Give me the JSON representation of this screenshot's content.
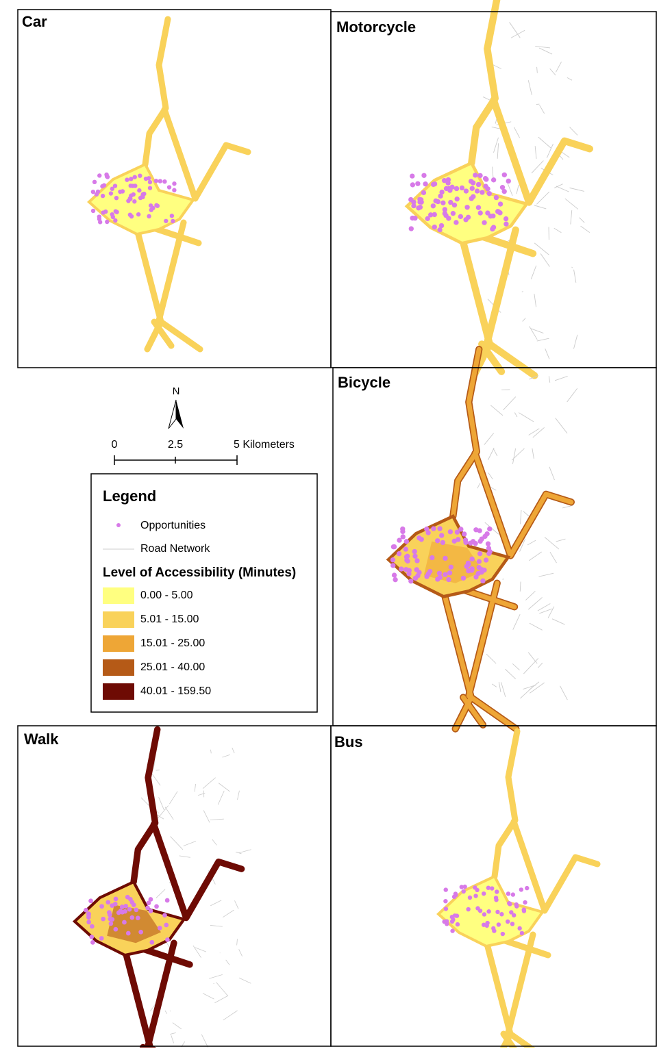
{
  "panels": [
    {
      "title": "Car"
    },
    {
      "title": "Motorcycle"
    },
    {
      "title": "Bicycle"
    },
    {
      "title": "Walk"
    },
    {
      "title": "Bus"
    }
  ],
  "north": "N",
  "scale_bar": {
    "labels": [
      "0",
      "2.5",
      "5 Kilometers"
    ]
  },
  "legend": {
    "title": "Legend",
    "items": [
      {
        "label": "Opportunities",
        "color": "#d77ae8"
      },
      {
        "label": "Road Network",
        "color": "#cccccc"
      }
    ],
    "accessibility_title": "Level of Accessibility (Minutes)",
    "classes": [
      {
        "label": "0.00  -  5.00",
        "color": "#ffff80"
      },
      {
        "label": "5.01 - 15.00",
        "color": "#f9d25a"
      },
      {
        "label": "15.01 - 25.00",
        "color": "#eea636"
      },
      {
        "label": "25.01 - 40.00",
        "color": "#b55a17"
      },
      {
        "label": "40.01 - 159.50",
        "color": "#6e0b04"
      }
    ]
  }
}
